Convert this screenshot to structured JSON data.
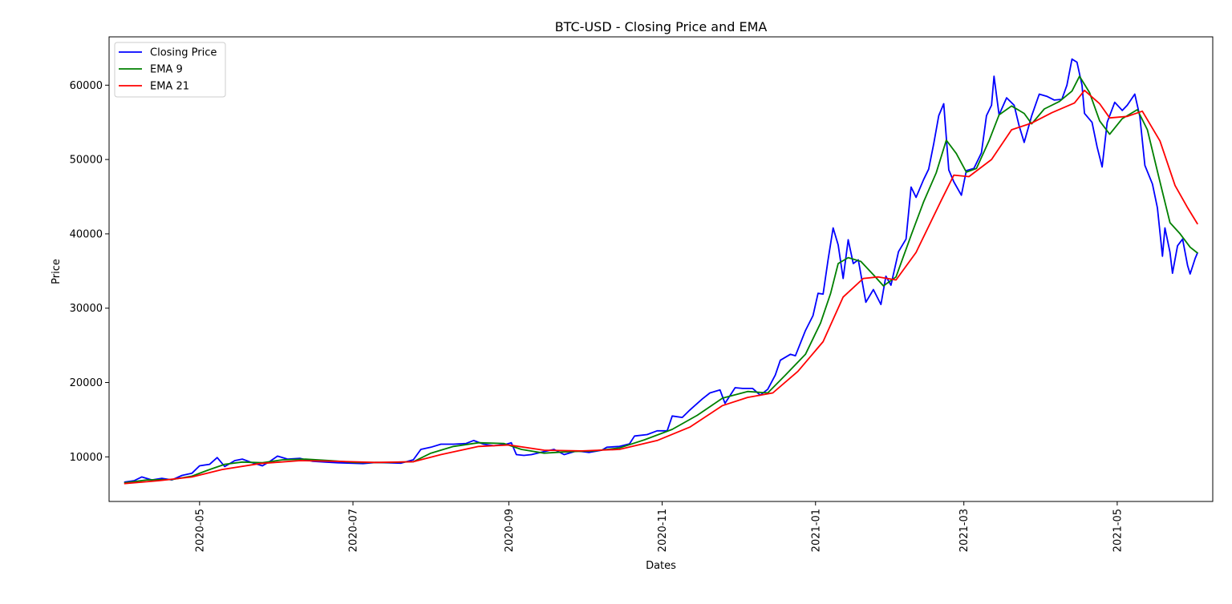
{
  "chart_data": {
    "type": "line",
    "title": "BTC-USD - Closing Price and EMA",
    "xlabel": "Dates",
    "ylabel": "Price",
    "xlim": [
      "2020-03-26",
      "2021-06-08"
    ],
    "ylim": [
      4000,
      66500
    ],
    "grid": false,
    "legend_position": "top-left",
    "x_ticks": [
      "2020-05",
      "2020-07",
      "2020-09",
      "2020-11",
      "2021-01",
      "2021-03",
      "2021-05"
    ],
    "y_ticks": [
      10000,
      20000,
      30000,
      40000,
      50000,
      60000
    ],
    "series": [
      {
        "name": "Closing Price",
        "color": "#0000ff",
        "points": [
          [
            "2020-04-01",
            6600
          ],
          [
            "2020-04-05",
            6800
          ],
          [
            "2020-04-08",
            7300
          ],
          [
            "2020-04-12",
            6900
          ],
          [
            "2020-04-16",
            7100
          ],
          [
            "2020-04-20",
            6900
          ],
          [
            "2020-04-24",
            7500
          ],
          [
            "2020-04-28",
            7800
          ],
          [
            "2020-05-01",
            8800
          ],
          [
            "2020-05-05",
            9000
          ],
          [
            "2020-05-08",
            9900
          ],
          [
            "2020-05-11",
            8700
          ],
          [
            "2020-05-15",
            9500
          ],
          [
            "2020-05-18",
            9700
          ],
          [
            "2020-05-22",
            9200
          ],
          [
            "2020-05-26",
            8800
          ],
          [
            "2020-05-29",
            9400
          ],
          [
            "2020-06-01",
            10100
          ],
          [
            "2020-06-05",
            9700
          ],
          [
            "2020-06-10",
            9800
          ],
          [
            "2020-06-15",
            9400
          ],
          [
            "2020-06-20",
            9300
          ],
          [
            "2020-06-25",
            9200
          ],
          [
            "2020-06-30",
            9150
          ],
          [
            "2020-07-05",
            9100
          ],
          [
            "2020-07-10",
            9250
          ],
          [
            "2020-07-15",
            9200
          ],
          [
            "2020-07-20",
            9150
          ],
          [
            "2020-07-25",
            9600
          ],
          [
            "2020-07-28",
            11000
          ],
          [
            "2020-08-01",
            11300
          ],
          [
            "2020-08-05",
            11700
          ],
          [
            "2020-08-10",
            11700
          ],
          [
            "2020-08-15",
            11800
          ],
          [
            "2020-08-18",
            12200
          ],
          [
            "2020-08-22",
            11700
          ],
          [
            "2020-08-26",
            11500
          ],
          [
            "2020-08-31",
            11700
          ],
          [
            "2020-09-02",
            11900
          ],
          [
            "2020-09-04",
            10300
          ],
          [
            "2020-09-07",
            10200
          ],
          [
            "2020-09-10",
            10300
          ],
          [
            "2020-09-15",
            10700
          ],
          [
            "2020-09-19",
            11000
          ],
          [
            "2020-09-23",
            10300
          ],
          [
            "2020-09-28",
            10800
          ],
          [
            "2020-10-03",
            10600
          ],
          [
            "2020-10-08",
            10900
          ],
          [
            "2020-10-10",
            11300
          ],
          [
            "2020-10-15",
            11400
          ],
          [
            "2020-10-19",
            11750
          ],
          [
            "2020-10-21",
            12800
          ],
          [
            "2020-10-26",
            13000
          ],
          [
            "2020-10-30",
            13500
          ],
          [
            "2020-11-03",
            13500
          ],
          [
            "2020-11-05",
            15500
          ],
          [
            "2020-11-09",
            15300
          ],
          [
            "2020-11-12",
            16300
          ],
          [
            "2020-11-17",
            17800
          ],
          [
            "2020-11-20",
            18600
          ],
          [
            "2020-11-24",
            19000
          ],
          [
            "2020-11-26",
            17200
          ],
          [
            "2020-11-30",
            19300
          ],
          [
            "2020-12-03",
            19200
          ],
          [
            "2020-12-07",
            19200
          ],
          [
            "2020-12-10",
            18300
          ],
          [
            "2020-12-13",
            19100
          ],
          [
            "2020-12-16",
            21000
          ],
          [
            "2020-12-18",
            23000
          ],
          [
            "2020-12-22",
            23800
          ],
          [
            "2020-12-24",
            23600
          ],
          [
            "2020-12-28",
            27000
          ],
          [
            "2020-12-31",
            29000
          ],
          [
            "2021-01-02",
            32000
          ],
          [
            "2021-01-04",
            31900
          ],
          [
            "2021-01-06",
            36500
          ],
          [
            "2021-01-08",
            40800
          ],
          [
            "2021-01-10",
            38500
          ],
          [
            "2021-01-12",
            34000
          ],
          [
            "2021-01-14",
            39200
          ],
          [
            "2021-01-16",
            36000
          ],
          [
            "2021-01-18",
            36500
          ],
          [
            "2021-01-21",
            30800
          ],
          [
            "2021-01-24",
            32500
          ],
          [
            "2021-01-27",
            30500
          ],
          [
            "2021-01-29",
            34300
          ],
          [
            "2021-01-31",
            33100
          ],
          [
            "2021-02-03",
            37600
          ],
          [
            "2021-02-06",
            39300
          ],
          [
            "2021-02-08",
            46300
          ],
          [
            "2021-02-10",
            44900
          ],
          [
            "2021-02-13",
            47300
          ],
          [
            "2021-02-15",
            48700
          ],
          [
            "2021-02-17",
            52100
          ],
          [
            "2021-02-19",
            55900
          ],
          [
            "2021-02-21",
            57500
          ],
          [
            "2021-02-23",
            48600
          ],
          [
            "2021-02-25",
            47000
          ],
          [
            "2021-02-28",
            45200
          ],
          [
            "2021-03-02",
            48500
          ],
          [
            "2021-03-05",
            48800
          ],
          [
            "2021-03-08",
            50900
          ],
          [
            "2021-03-10",
            55900
          ],
          [
            "2021-03-12",
            57300
          ],
          [
            "2021-03-13",
            61200
          ],
          [
            "2021-03-15",
            56000
          ],
          [
            "2021-03-18",
            58300
          ],
          [
            "2021-03-21",
            57300
          ],
          [
            "2021-03-23",
            54500
          ],
          [
            "2021-03-25",
            52300
          ],
          [
            "2021-03-28",
            55900
          ],
          [
            "2021-03-31",
            58800
          ],
          [
            "2021-04-03",
            58500
          ],
          [
            "2021-04-06",
            58000
          ],
          [
            "2021-04-09",
            58100
          ],
          [
            "2021-04-11",
            60000
          ],
          [
            "2021-04-13",
            63500
          ],
          [
            "2021-04-15",
            63100
          ],
          [
            "2021-04-17",
            60000
          ],
          [
            "2021-04-18",
            56200
          ],
          [
            "2021-04-21",
            55000
          ],
          [
            "2021-04-23",
            51700
          ],
          [
            "2021-04-25",
            49000
          ],
          [
            "2021-04-27",
            55000
          ],
          [
            "2021-04-30",
            57700
          ],
          [
            "2021-05-03",
            56600
          ],
          [
            "2021-05-05",
            57300
          ],
          [
            "2021-05-08",
            58800
          ],
          [
            "2021-05-10",
            55800
          ],
          [
            "2021-05-12",
            49200
          ],
          [
            "2021-05-15",
            46700
          ],
          [
            "2021-05-17",
            43500
          ],
          [
            "2021-05-19",
            37000
          ],
          [
            "2021-05-20",
            40800
          ],
          [
            "2021-05-22",
            37500
          ],
          [
            "2021-05-23",
            34700
          ],
          [
            "2021-05-25",
            38400
          ],
          [
            "2021-05-27",
            39300
          ],
          [
            "2021-05-29",
            35700
          ],
          [
            "2021-05-30",
            34600
          ],
          [
            "2021-06-01",
            36700
          ],
          [
            "2021-06-02",
            37500
          ]
        ]
      },
      {
        "name": "EMA 9",
        "color": "#008000",
        "points": [
          [
            "2020-04-01",
            6500
          ],
          [
            "2020-04-10",
            6900
          ],
          [
            "2020-04-20",
            6950
          ],
          [
            "2020-04-28",
            7400
          ],
          [
            "2020-05-05",
            8300
          ],
          [
            "2020-05-11",
            9000
          ],
          [
            "2020-05-18",
            9300
          ],
          [
            "2020-05-26",
            9200
          ],
          [
            "2020-06-03",
            9600
          ],
          [
            "2020-06-12",
            9700
          ],
          [
            "2020-06-22",
            9500
          ],
          [
            "2020-07-02",
            9250
          ],
          [
            "2020-07-15",
            9250
          ],
          [
            "2020-07-25",
            9350
          ],
          [
            "2020-08-01",
            10500
          ],
          [
            "2020-08-10",
            11400
          ],
          [
            "2020-08-20",
            11900
          ],
          [
            "2020-08-30",
            11800
          ],
          [
            "2020-09-06",
            11000
          ],
          [
            "2020-09-15",
            10500
          ],
          [
            "2020-09-25",
            10700
          ],
          [
            "2020-10-05",
            10800
          ],
          [
            "2020-10-15",
            11200
          ],
          [
            "2020-10-25",
            12300
          ],
          [
            "2020-11-05",
            13700
          ],
          [
            "2020-11-15",
            15600
          ],
          [
            "2020-11-25",
            17900
          ],
          [
            "2020-12-05",
            18800
          ],
          [
            "2020-12-13",
            18600
          ],
          [
            "2020-12-20",
            21000
          ],
          [
            "2020-12-28",
            23800
          ],
          [
            "2021-01-03",
            28000
          ],
          [
            "2021-01-07",
            32000
          ],
          [
            "2021-01-10",
            36000
          ],
          [
            "2021-01-14",
            36800
          ],
          [
            "2021-01-19",
            36300
          ],
          [
            "2021-01-24",
            34500
          ],
          [
            "2021-01-28",
            33000
          ],
          [
            "2021-02-02",
            34200
          ],
          [
            "2021-02-08",
            39800
          ],
          [
            "2021-02-13",
            44300
          ],
          [
            "2021-02-18",
            48200
          ],
          [
            "2021-02-22",
            52600
          ],
          [
            "2021-02-26",
            50800
          ],
          [
            "2021-03-02",
            48300
          ],
          [
            "2021-03-06",
            48800
          ],
          [
            "2021-03-11",
            52500
          ],
          [
            "2021-03-15",
            56000
          ],
          [
            "2021-03-20",
            57200
          ],
          [
            "2021-03-25",
            56200
          ],
          [
            "2021-03-28",
            54800
          ],
          [
            "2021-04-02",
            56800
          ],
          [
            "2021-04-08",
            57800
          ],
          [
            "2021-04-13",
            59200
          ],
          [
            "2021-04-16",
            61200
          ],
          [
            "2021-04-20",
            59000
          ],
          [
            "2021-04-24",
            55200
          ],
          [
            "2021-04-28",
            53400
          ],
          [
            "2021-05-03",
            55500
          ],
          [
            "2021-05-09",
            56700
          ],
          [
            "2021-05-13",
            54000
          ],
          [
            "2021-05-18",
            47000
          ],
          [
            "2021-05-22",
            41500
          ],
          [
            "2021-05-26",
            40000
          ],
          [
            "2021-05-30",
            38200
          ],
          [
            "2021-06-02",
            37400
          ]
        ]
      },
      {
        "name": "EMA 21",
        "color": "#ff0000",
        "points": [
          [
            "2020-04-01",
            6400
          ],
          [
            "2020-04-15",
            6800
          ],
          [
            "2020-04-28",
            7300
          ],
          [
            "2020-05-10",
            8300
          ],
          [
            "2020-05-25",
            9100
          ],
          [
            "2020-06-10",
            9500
          ],
          [
            "2020-06-25",
            9400
          ],
          [
            "2020-07-10",
            9250
          ],
          [
            "2020-07-25",
            9350
          ],
          [
            "2020-08-05",
            10300
          ],
          [
            "2020-08-20",
            11400
          ],
          [
            "2020-09-01",
            11600
          ],
          [
            "2020-09-15",
            10900
          ],
          [
            "2020-09-30",
            10800
          ],
          [
            "2020-10-15",
            11000
          ],
          [
            "2020-10-30",
            12200
          ],
          [
            "2020-11-12",
            14000
          ],
          [
            "2020-11-25",
            16900
          ],
          [
            "2020-12-05",
            18000
          ],
          [
            "2020-12-15",
            18600
          ],
          [
            "2020-12-25",
            21500
          ],
          [
            "2021-01-04",
            25500
          ],
          [
            "2021-01-12",
            31500
          ],
          [
            "2021-01-20",
            34000
          ],
          [
            "2021-01-26",
            34200
          ],
          [
            "2021-02-02",
            33800
          ],
          [
            "2021-02-10",
            37500
          ],
          [
            "2021-02-20",
            44500
          ],
          [
            "2021-02-25",
            47900
          ],
          [
            "2021-03-03",
            47700
          ],
          [
            "2021-03-12",
            50000
          ],
          [
            "2021-03-20",
            54000
          ],
          [
            "2021-03-28",
            54900
          ],
          [
            "2021-04-05",
            56300
          ],
          [
            "2021-04-14",
            57600
          ],
          [
            "2021-04-18",
            59300
          ],
          [
            "2021-04-24",
            57500
          ],
          [
            "2021-04-28",
            55600
          ],
          [
            "2021-05-05",
            55800
          ],
          [
            "2021-05-11",
            56500
          ],
          [
            "2021-05-18",
            52500
          ],
          [
            "2021-05-24",
            46500
          ],
          [
            "2021-05-29",
            43500
          ],
          [
            "2021-06-02",
            41300
          ]
        ]
      }
    ]
  }
}
